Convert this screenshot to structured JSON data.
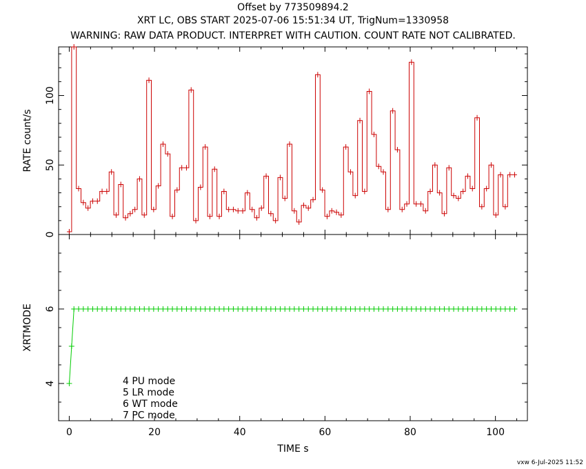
{
  "titles": {
    "line1": "Offset by 773509894.2",
    "line2": "XRT LC, OBS START 2025-07-06 15:51:34 UT, TrigNum=1330958",
    "line3": "WARNING: RAW DATA PRODUCT. INTERPRET WITH CAUTION. COUNT RATE NOT CALIBRATED."
  },
  "footer": "vxw  6-Jul-2025 11:52",
  "chart_data": [
    {
      "type": "line",
      "title": "",
      "xlabel": "",
      "ylabel": "RATE  count/s",
      "xlim": [
        -2.5,
        107.5
      ],
      "ylim": [
        0,
        135
      ],
      "x_ticks": [],
      "y_ticks": [
        0,
        50,
        100
      ],
      "y_tick_labels": [
        "0",
        "50",
        "100"
      ],
      "color": "#cc0000",
      "step": true,
      "x": [
        0.0,
        1.1,
        2.2,
        3.3,
        4.4,
        5.5,
        6.6,
        7.7,
        8.8,
        9.9,
        11.0,
        12.1,
        13.2,
        14.3,
        15.4,
        16.5,
        17.6,
        18.7,
        19.8,
        20.9,
        22.0,
        23.1,
        24.2,
        25.3,
        26.4,
        27.5,
        28.6,
        29.7,
        30.8,
        31.9,
        33.0,
        34.1,
        35.2,
        36.3,
        37.4,
        38.5,
        39.6,
        40.7,
        41.8,
        42.9,
        44.0,
        45.1,
        46.2,
        47.3,
        48.4,
        49.5,
        50.6,
        51.7,
        52.8,
        53.9,
        55.0,
        56.1,
        57.2,
        58.3,
        59.4,
        60.5,
        61.6,
        62.7,
        63.8,
        64.9,
        66.0,
        67.1,
        68.2,
        69.3,
        70.4,
        71.5,
        72.6,
        73.7,
        74.8,
        75.9,
        77.0,
        78.1,
        79.2,
        80.3,
        81.4,
        82.5,
        83.6,
        84.7,
        85.8,
        86.9,
        88.0,
        89.1,
        90.2,
        91.3,
        92.4,
        93.5,
        94.6,
        95.7,
        96.8,
        97.9,
        99.0,
        100.1,
        101.2,
        102.3,
        103.4,
        104.5
      ],
      "values": [
        2,
        135,
        33,
        23,
        19,
        24,
        24,
        31,
        31,
        45,
        14,
        36,
        12,
        15,
        18,
        40,
        14,
        111,
        18,
        35,
        65,
        58,
        13,
        32,
        48,
        48,
        104,
        10,
        34,
        63,
        13,
        47,
        13,
        31,
        18,
        18,
        17,
        17,
        30,
        18,
        12,
        19,
        42,
        15,
        10,
        41,
        26,
        65,
        17,
        9,
        21,
        19,
        25,
        115,
        32,
        13,
        17,
        16,
        14,
        63,
        45,
        28,
        82,
        31,
        103,
        72,
        49,
        45,
        18,
        89,
        61,
        18,
        22,
        124,
        22,
        22,
        17,
        31,
        50,
        30,
        15,
        48,
        28,
        26,
        31,
        42,
        33,
        84,
        20,
        33,
        50,
        14,
        43,
        20,
        43,
        43
      ]
    },
    {
      "type": "line",
      "title": "",
      "xlabel": "TIME  s",
      "ylabel": "XRTMODE",
      "xlim": [
        -2.5,
        107.5
      ],
      "ylim": [
        3,
        8
      ],
      "x_ticks": [
        0,
        20,
        40,
        60,
        80,
        100
      ],
      "x_tick_labels": [
        "0",
        "20",
        "40",
        "60",
        "80",
        "100"
      ],
      "y_ticks": [
        4,
        6
      ],
      "y_tick_labels": [
        "4",
        "6"
      ],
      "color": "#00cc00",
      "step": false,
      "x": [
        0.0,
        0.55,
        1.1,
        2.2,
        3.3,
        4.4,
        5.5,
        6.6,
        7.7,
        8.8,
        9.9,
        11.0,
        12.1,
        13.2,
        14.3,
        15.4,
        16.5,
        17.6,
        18.7,
        19.8,
        20.9,
        22.0,
        23.1,
        24.2,
        25.3,
        26.4,
        27.5,
        28.6,
        29.7,
        30.8,
        31.9,
        33.0,
        34.1,
        35.2,
        36.3,
        37.4,
        38.5,
        39.6,
        40.7,
        41.8,
        42.9,
        44.0,
        45.1,
        46.2,
        47.3,
        48.4,
        49.5,
        50.6,
        51.7,
        52.8,
        53.9,
        55.0,
        56.1,
        57.2,
        58.3,
        59.4,
        60.5,
        61.6,
        62.7,
        63.8,
        64.9,
        66.0,
        67.1,
        68.2,
        69.3,
        70.4,
        71.5,
        72.6,
        73.7,
        74.8,
        75.9,
        77.0,
        78.1,
        79.2,
        80.3,
        81.4,
        82.5,
        83.6,
        84.7,
        85.8,
        86.9,
        88.0,
        89.1,
        90.2,
        91.3,
        92.4,
        93.5,
        94.6,
        95.7,
        96.8,
        97.9,
        99.0,
        100.1,
        101.2,
        102.3,
        103.4,
        104.5
      ],
      "values": [
        4,
        5,
        6,
        6,
        6,
        6,
        6,
        6,
        6,
        6,
        6,
        6,
        6,
        6,
        6,
        6,
        6,
        6,
        6,
        6,
        6,
        6,
        6,
        6,
        6,
        6,
        6,
        6,
        6,
        6,
        6,
        6,
        6,
        6,
        6,
        6,
        6,
        6,
        6,
        6,
        6,
        6,
        6,
        6,
        6,
        6,
        6,
        6,
        6,
        6,
        6,
        6,
        6,
        6,
        6,
        6,
        6,
        6,
        6,
        6,
        6,
        6,
        6,
        6,
        6,
        6,
        6,
        6,
        6,
        6,
        6,
        6,
        6,
        6,
        6,
        6,
        6,
        6,
        6,
        6,
        6,
        6,
        6,
        6,
        6,
        6,
        6,
        6,
        6,
        6,
        6,
        6,
        6,
        6,
        6,
        6,
        6
      ],
      "annotations": [
        "4 PU mode",
        "5 LR mode",
        "6 WT mode",
        "7 PC mode"
      ]
    }
  ]
}
